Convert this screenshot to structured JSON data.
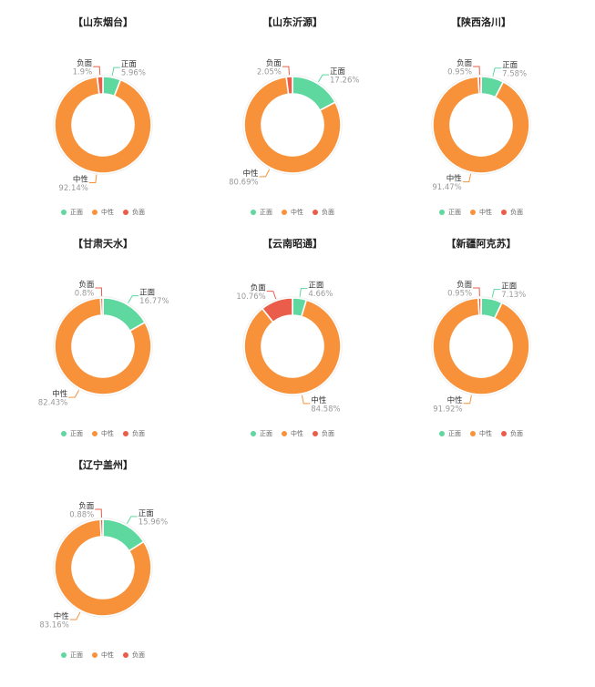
{
  "colors": {
    "positive": "#5fd8a0",
    "neutral": "#f7923b",
    "negative": "#e95d4a",
    "label_text": "#999999",
    "label_name": "#333333"
  },
  "legend": [
    {
      "label": "正面",
      "color": "#5fd8a0"
    },
    {
      "label": "中性",
      "color": "#f7923b"
    },
    {
      "label": "负面",
      "color": "#e95d4a"
    }
  ],
  "chart_data": [
    {
      "type": "pie",
      "title": "【山东烟台】",
      "categories": [
        "正面",
        "中性",
        "负面"
      ],
      "values": [
        5.96,
        92.14,
        1.9
      ],
      "value_labels": [
        "5.96%",
        "92.14%",
        "1.9%"
      ]
    },
    {
      "type": "pie",
      "title": "【山东沂源】",
      "categories": [
        "正面",
        "中性",
        "负面"
      ],
      "values": [
        17.26,
        80.69,
        2.05
      ],
      "value_labels": [
        "17.26%",
        "80.69%",
        "2.05%"
      ]
    },
    {
      "type": "pie",
      "title": "【陕西洛川】",
      "categories": [
        "正面",
        "中性",
        "负面"
      ],
      "values": [
        7.58,
        91.47,
        0.95
      ],
      "value_labels": [
        "7.58%",
        "91.47%",
        "0.95%"
      ]
    },
    {
      "type": "pie",
      "title": "【甘肃天水】",
      "categories": [
        "正面",
        "中性",
        "负面"
      ],
      "values": [
        16.77,
        82.43,
        0.8
      ],
      "value_labels": [
        "16.77%",
        "82.43%",
        "0.8%"
      ]
    },
    {
      "type": "pie",
      "title": "【云南昭通】",
      "categories": [
        "正面",
        "中性",
        "负面"
      ],
      "values": [
        4.66,
        84.58,
        10.76
      ],
      "value_labels": [
        "4.66%",
        "84.58%",
        "10.76%"
      ]
    },
    {
      "type": "pie",
      "title": "【新疆阿克苏】",
      "categories": [
        "正面",
        "中性",
        "负面"
      ],
      "values": [
        7.13,
        91.92,
        0.95
      ],
      "value_labels": [
        "7.13%",
        "91.92%",
        "0.95%"
      ]
    },
    {
      "type": "pie",
      "title": "【辽宁盖州】",
      "categories": [
        "正面",
        "中性",
        "负面"
      ],
      "values": [
        15.96,
        83.16,
        0.88
      ],
      "value_labels": [
        "15.96%",
        "83.16%",
        "0.88%"
      ]
    }
  ]
}
